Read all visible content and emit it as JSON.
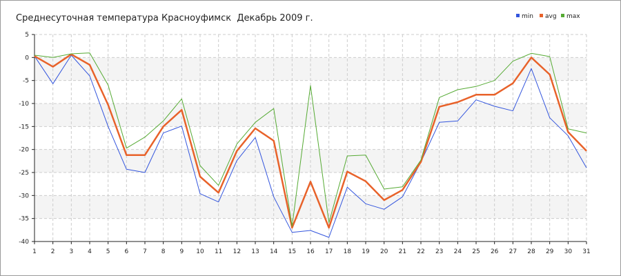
{
  "chart_data": {
    "type": "line",
    "title": "Среднесуточная температура Красноуфимск  Декабрь 2009 г.",
    "xlabel": "",
    "ylabel": "",
    "x": [
      1,
      2,
      3,
      4,
      5,
      6,
      7,
      8,
      9,
      10,
      11,
      12,
      13,
      14,
      15,
      16,
      17,
      18,
      19,
      20,
      21,
      22,
      23,
      24,
      25,
      26,
      27,
      28,
      29,
      30,
      31
    ],
    "xlim": [
      1,
      31
    ],
    "ylim": [
      -40,
      5
    ],
    "yticks": [
      5,
      0,
      -5,
      -10,
      -15,
      -20,
      -25,
      -30,
      -35,
      -40
    ],
    "grid": true,
    "legend_position": "top-right",
    "series": [
      {
        "name": "min",
        "color": "#3355dd",
        "values": [
          0.3,
          -5.7,
          0.5,
          -4,
          -15,
          -24.3,
          -25,
          -16.4,
          -14.9,
          -29.6,
          -31.4,
          -22.4,
          -17.4,
          -30.3,
          -38,
          -37.6,
          -39.1,
          -28.2,
          -31.8,
          -33,
          -30.3,
          -22.7,
          -14.1,
          -13.8,
          -9.2,
          -10.6,
          -11.6,
          -2.4,
          -13.1,
          -17,
          -24
        ]
      },
      {
        "name": "avg",
        "color": "#e8622a",
        "values": [
          0.3,
          -2,
          0.7,
          -1.6,
          -10.3,
          -21.2,
          -21.2,
          -15,
          -11.4,
          -25.9,
          -29.4,
          -20.3,
          -15.4,
          -18.1,
          -37,
          -27,
          -37,
          -24.8,
          -26.9,
          -31,
          -28.8,
          -22.7,
          -10.7,
          -9.7,
          -8.1,
          -8.1,
          -5.6,
          0,
          -3.7,
          -16.2,
          -20.3
        ]
      },
      {
        "name": "max",
        "color": "#55aa33",
        "values": [
          0.5,
          0,
          0.8,
          1,
          -6,
          -19.7,
          -17.3,
          -13.8,
          -9,
          -23.5,
          -27.8,
          -18.8,
          -14.1,
          -11.1,
          -36.7,
          -6.1,
          -35.9,
          -21.4,
          -21.2,
          -28.6,
          -28.1,
          -22.3,
          -8.7,
          -7,
          -6.3,
          -5,
          -0.8,
          0.9,
          0.2,
          -15.5,
          -16.4
        ]
      }
    ]
  }
}
